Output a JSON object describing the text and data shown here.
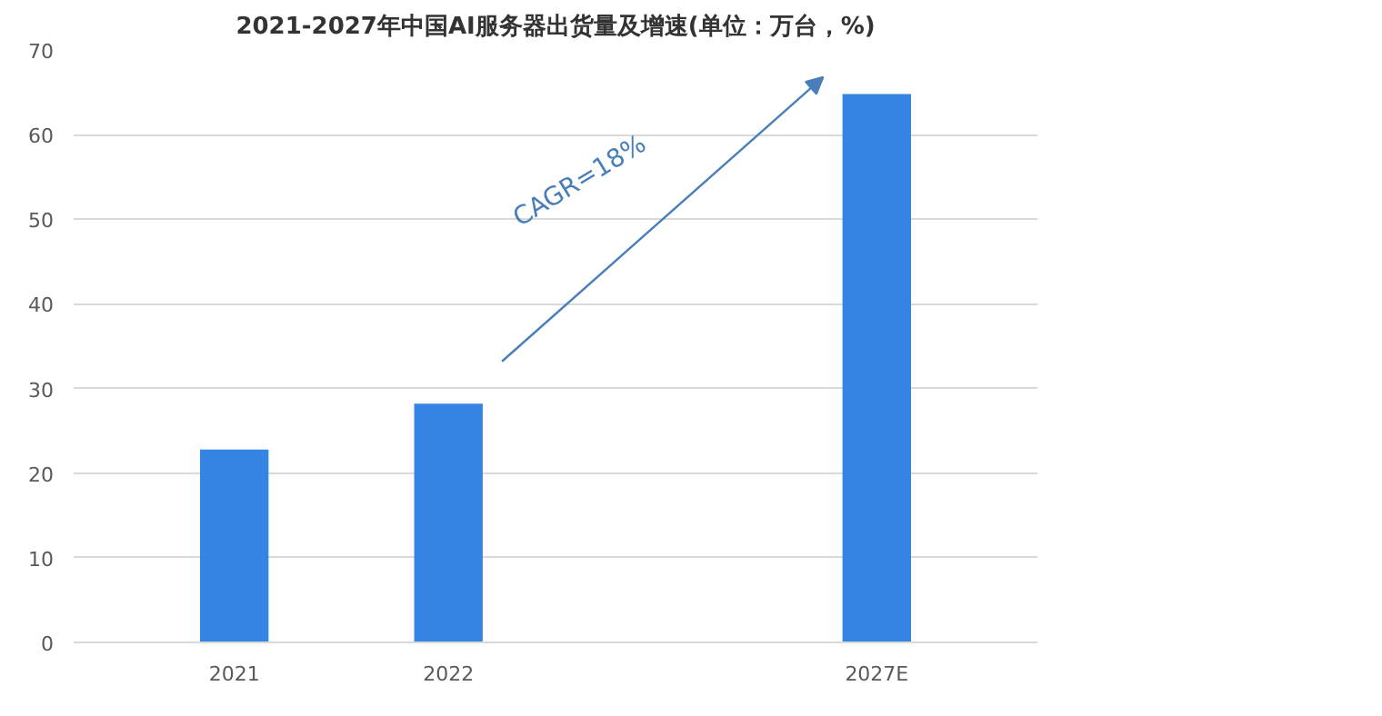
{
  "chart_data": {
    "type": "bar",
    "title": "2021-2027年中国AI服务器出货量及增速(单位：万台，%)",
    "categories": [
      "2021",
      "2022",
      null,
      "2027E"
    ],
    "values": [
      22.8,
      28.2,
      null,
      64.8
    ],
    "color": "#3583e2",
    "ylim": [
      0,
      70
    ],
    "yticks": [
      0,
      10,
      20,
      30,
      40,
      50,
      60,
      70
    ],
    "grid": "y",
    "annotations": [
      "CAGR=18%"
    ]
  }
}
